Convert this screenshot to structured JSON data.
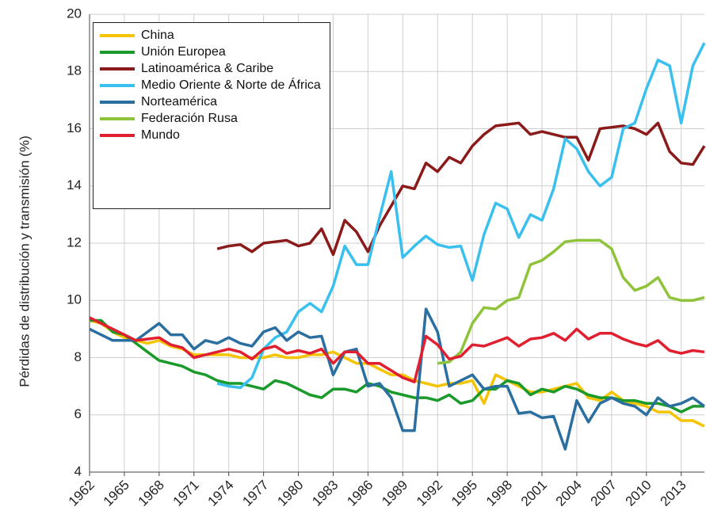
{
  "chart_data": {
    "type": "line",
    "y_label": "Pérdidas de distribución y transmisión (%)",
    "x": [
      1962,
      1963,
      1964,
      1965,
      1966,
      1967,
      1968,
      1969,
      1970,
      1971,
      1972,
      1973,
      1974,
      1975,
      1976,
      1977,
      1978,
      1979,
      1980,
      1981,
      1982,
      1983,
      1984,
      1985,
      1986,
      1987,
      1988,
      1989,
      1990,
      1991,
      1992,
      1993,
      1994,
      1995,
      1996,
      1997,
      1998,
      1999,
      2000,
      2001,
      2002,
      2003,
      2004,
      2005,
      2006,
      2007,
      2008,
      2009,
      2010,
      2011,
      2012,
      2013,
      2014,
      2015
    ],
    "xlim": [
      1962,
      2015
    ],
    "xticks": [
      1962,
      1965,
      1968,
      1971,
      1974,
      1977,
      1980,
      1983,
      1986,
      1989,
      1992,
      1995,
      1998,
      2001,
      2004,
      2007,
      2010,
      2013
    ],
    "ylim": [
      4,
      20
    ],
    "yticks": [
      4,
      6,
      8,
      10,
      12,
      14,
      16,
      18,
      20
    ],
    "grid": true,
    "legend": "upper left",
    "series": [
      {
        "name": "China",
        "color": "#f5c400",
        "values": [
          9.3,
          9.2,
          8.9,
          8.7,
          8.6,
          8.5,
          8.6,
          8.4,
          8.3,
          8.1,
          8.1,
          8.1,
          8.1,
          8.0,
          8.0,
          8.0,
          8.1,
          8.0,
          8.0,
          8.1,
          8.1,
          8.2,
          8.0,
          7.8,
          7.8,
          7.6,
          7.4,
          7.4,
          7.2,
          7.1,
          7.0,
          7.1,
          7.1,
          7.2,
          6.4,
          7.4,
          7.2,
          7.0,
          6.8,
          6.8,
          6.9,
          7.0,
          7.1,
          6.6,
          6.5,
          6.8,
          6.5,
          6.4,
          6.3,
          6.1,
          6.1,
          5.8,
          5.8,
          5.6
        ]
      },
      {
        "name": "Unión Europea",
        "color": "#1a9a2a",
        "values": [
          9.3,
          9.3,
          8.9,
          8.8,
          8.5,
          8.2,
          7.9,
          7.8,
          7.7,
          7.5,
          7.4,
          7.2,
          7.1,
          7.1,
          7.0,
          6.9,
          7.2,
          7.1,
          6.9,
          6.7,
          6.6,
          6.9,
          6.9,
          6.8,
          7.1,
          7.0,
          6.8,
          6.7,
          6.6,
          6.6,
          6.5,
          6.7,
          6.4,
          6.5,
          6.9,
          6.9,
          7.2,
          7.1,
          6.7,
          6.9,
          6.8,
          7.0,
          6.9,
          6.7,
          6.6,
          6.6,
          6.5,
          6.5,
          6.4,
          6.4,
          6.3,
          6.1,
          6.3,
          6.3
        ]
      },
      {
        "name": "Latinoamérica & Caribe",
        "color": "#8b1a1a",
        "values": [
          null,
          null,
          null,
          null,
          null,
          null,
          null,
          null,
          null,
          null,
          null,
          11.8,
          11.9,
          11.95,
          11.7,
          12.0,
          12.05,
          12.1,
          11.9,
          12.0,
          12.5,
          11.6,
          12.8,
          12.4,
          11.7,
          12.6,
          13.3,
          14.0,
          13.9,
          14.8,
          14.5,
          15.0,
          14.8,
          15.4,
          15.8,
          16.1,
          16.15,
          16.2,
          15.8,
          15.9,
          15.8,
          15.7,
          15.7,
          14.9,
          16.0,
          16.05,
          16.1,
          16.0,
          15.8,
          16.2,
          15.2,
          14.8,
          14.75,
          15.4
        ]
      },
      {
        "name": "Medio Oriente & Norte de África",
        "color": "#3ac0ee",
        "values": [
          null,
          null,
          null,
          null,
          null,
          null,
          null,
          null,
          null,
          null,
          null,
          7.1,
          7.0,
          6.95,
          7.3,
          8.3,
          8.7,
          8.9,
          9.6,
          9.9,
          9.6,
          10.5,
          11.9,
          11.25,
          11.25,
          12.9,
          14.5,
          11.5,
          11.9,
          12.25,
          11.95,
          11.85,
          11.9,
          10.7,
          12.3,
          13.4,
          13.2,
          12.2,
          13.0,
          12.8,
          13.9,
          15.65,
          15.3,
          14.5,
          14.0,
          14.3,
          16.0,
          16.2,
          17.4,
          18.4,
          18.2,
          16.2,
          18.2,
          19.0
        ]
      },
      {
        "name": "Norteamérica",
        "color": "#2a6fa0",
        "values": [
          9.0,
          8.8,
          8.6,
          8.6,
          8.6,
          8.9,
          9.2,
          8.8,
          8.8,
          8.3,
          8.6,
          8.5,
          8.7,
          8.5,
          8.4,
          8.9,
          9.05,
          8.6,
          8.9,
          8.7,
          8.75,
          7.4,
          8.2,
          8.3,
          7.0,
          7.1,
          6.6,
          5.45,
          5.45,
          9.7,
          8.9,
          7.0,
          7.2,
          7.4,
          6.9,
          7.0,
          7.0,
          6.05,
          6.1,
          5.9,
          5.95,
          4.8,
          6.5,
          5.75,
          6.4,
          6.6,
          6.4,
          6.3,
          6.0,
          6.6,
          6.3,
          6.4,
          6.6,
          6.3
        ]
      },
      {
        "name": "Federación Rusa",
        "color": "#8fc43a",
        "values": [
          null,
          null,
          null,
          null,
          null,
          null,
          null,
          null,
          null,
          null,
          null,
          null,
          null,
          null,
          null,
          null,
          null,
          null,
          null,
          null,
          null,
          null,
          null,
          null,
          null,
          null,
          null,
          null,
          null,
          null,
          7.8,
          7.85,
          8.2,
          9.2,
          9.75,
          9.7,
          10.0,
          10.1,
          11.25,
          11.4,
          11.7,
          12.05,
          12.1,
          12.1,
          12.1,
          11.8,
          10.8,
          10.35,
          10.5,
          10.8,
          10.1,
          10.0,
          10.0,
          10.1
        ]
      },
      {
        "name": "Mundo",
        "color": "#e02030",
        "values": [
          9.4,
          9.2,
          9.0,
          8.8,
          8.6,
          8.65,
          8.7,
          8.45,
          8.35,
          8.0,
          8.1,
          8.2,
          8.3,
          8.2,
          7.95,
          8.3,
          8.4,
          8.15,
          8.25,
          8.15,
          8.3,
          7.8,
          8.2,
          8.2,
          7.8,
          7.8,
          7.55,
          7.3,
          7.15,
          8.75,
          8.45,
          7.95,
          8.05,
          8.45,
          8.4,
          8.55,
          8.7,
          8.4,
          8.65,
          8.7,
          8.85,
          8.6,
          9.0,
          8.65,
          8.85,
          8.85,
          8.65,
          8.5,
          8.4,
          8.6,
          8.25,
          8.15,
          8.25,
          8.2
        ]
      }
    ]
  }
}
